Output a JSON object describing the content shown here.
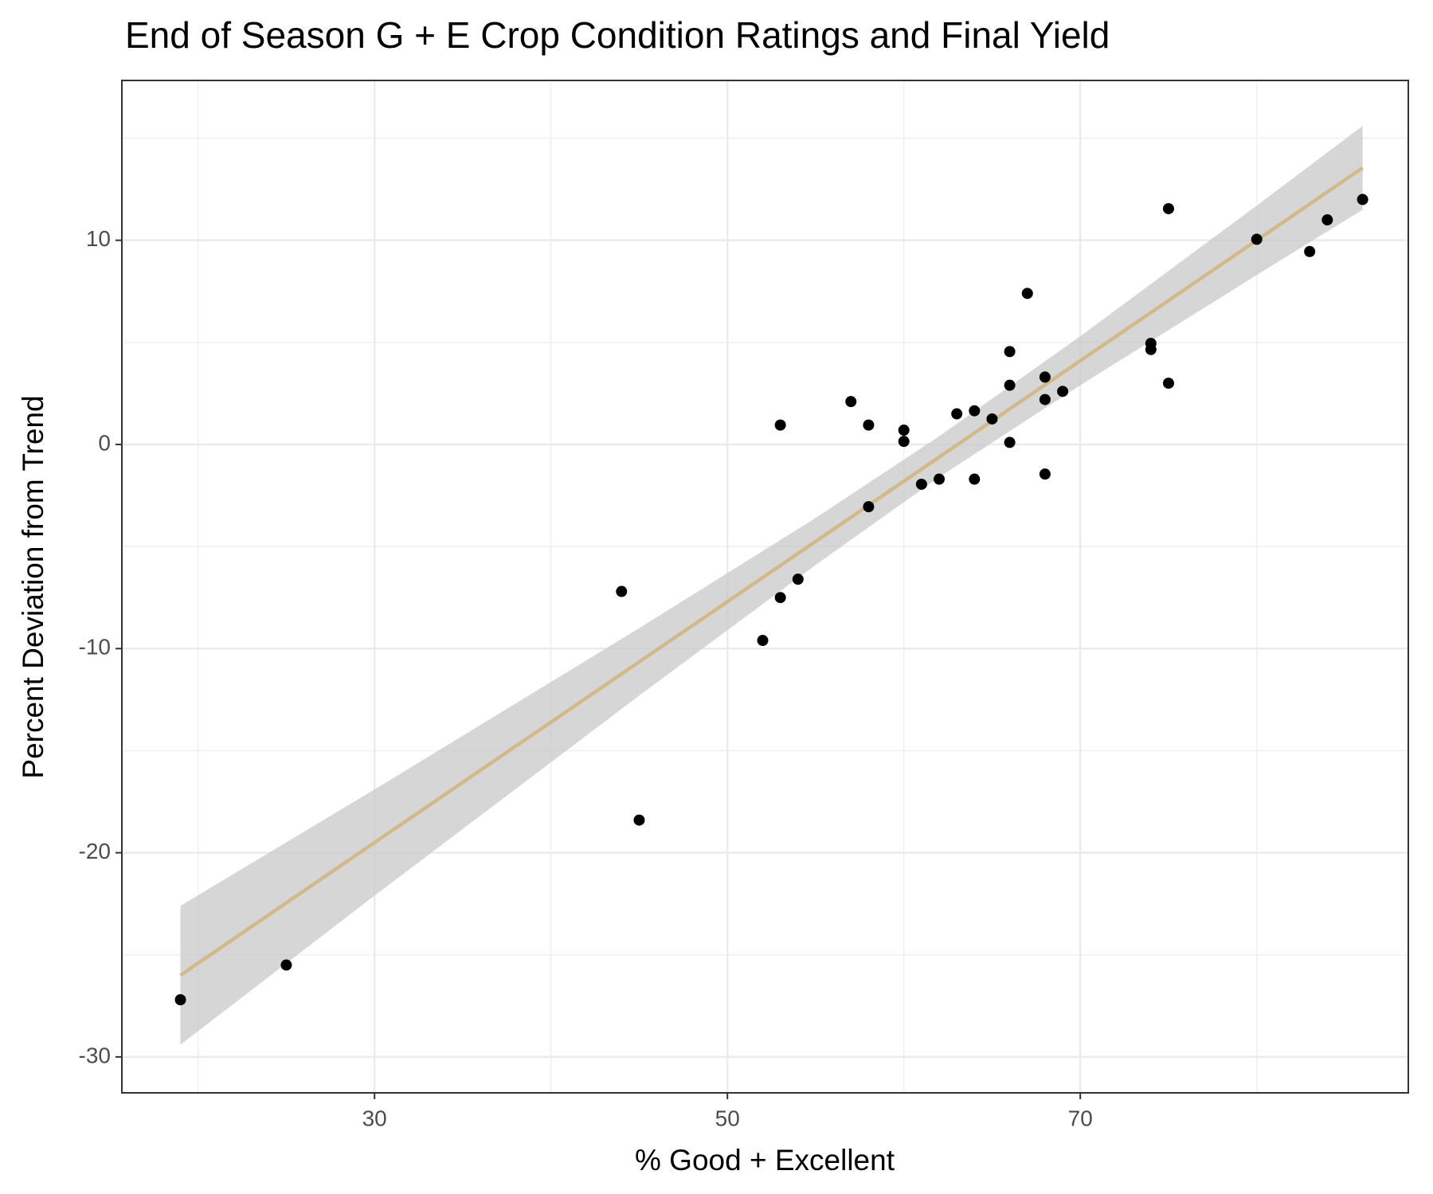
{
  "chart_data": {
    "type": "scatter",
    "title": "End of Season G + E Crop Condition Ratings and Final Yield",
    "x_label": "% Good + Excellent",
    "y_label": "Percent Deviation from Trend",
    "x": [
      19,
      25,
      44,
      45,
      52,
      53,
      53,
      54,
      57,
      58,
      58,
      60,
      60,
      61,
      62,
      63,
      64,
      64,
      65,
      66,
      66,
      66,
      67,
      68,
      68,
      68,
      69,
      74,
      74,
      75,
      75,
      80,
      83,
      84,
      86
    ],
    "values": [
      -27.2,
      -25.5,
      -7.2,
      -18.4,
      -9.6,
      0.95,
      -7.5,
      -6.6,
      2.1,
      0.95,
      -3.05,
      0.7,
      0.15,
      -1.95,
      -1.7,
      1.5,
      1.65,
      -1.7,
      1.25,
      4.55,
      2.9,
      0.1,
      7.4,
      3.3,
      2.2,
      -1.45,
      2.6,
      4.95,
      4.65,
      11.55,
      3.0,
      10.05,
      9.45,
      11.0,
      12.0
    ],
    "color": "#000000",
    "fit": {
      "x": [
        19,
        30,
        45,
        55,
        62,
        70,
        80,
        86
      ],
      "values": [
        -26.0,
        -19.5,
        -10.65,
        -4.75,
        -0.62,
        4.1,
        10.0,
        13.55
      ],
      "lower": [
        -29.4,
        -22.1,
        -12.3,
        -5.9,
        -1.6,
        2.9,
        8.3,
        11.5
      ],
      "upper": [
        -22.6,
        -16.9,
        -9.0,
        -3.6,
        0.4,
        5.3,
        11.7,
        15.6
      ],
      "color": "#d2b98a",
      "band_color": "#c8c8c8"
    },
    "xlim": [
      15.68,
      88.59
    ],
    "ylim": [
      -31.76,
      17.83
    ],
    "xticks": [
      30,
      50,
      70
    ],
    "yticks": [
      -30,
      -20,
      -10,
      0,
      10
    ],
    "grid": true
  }
}
